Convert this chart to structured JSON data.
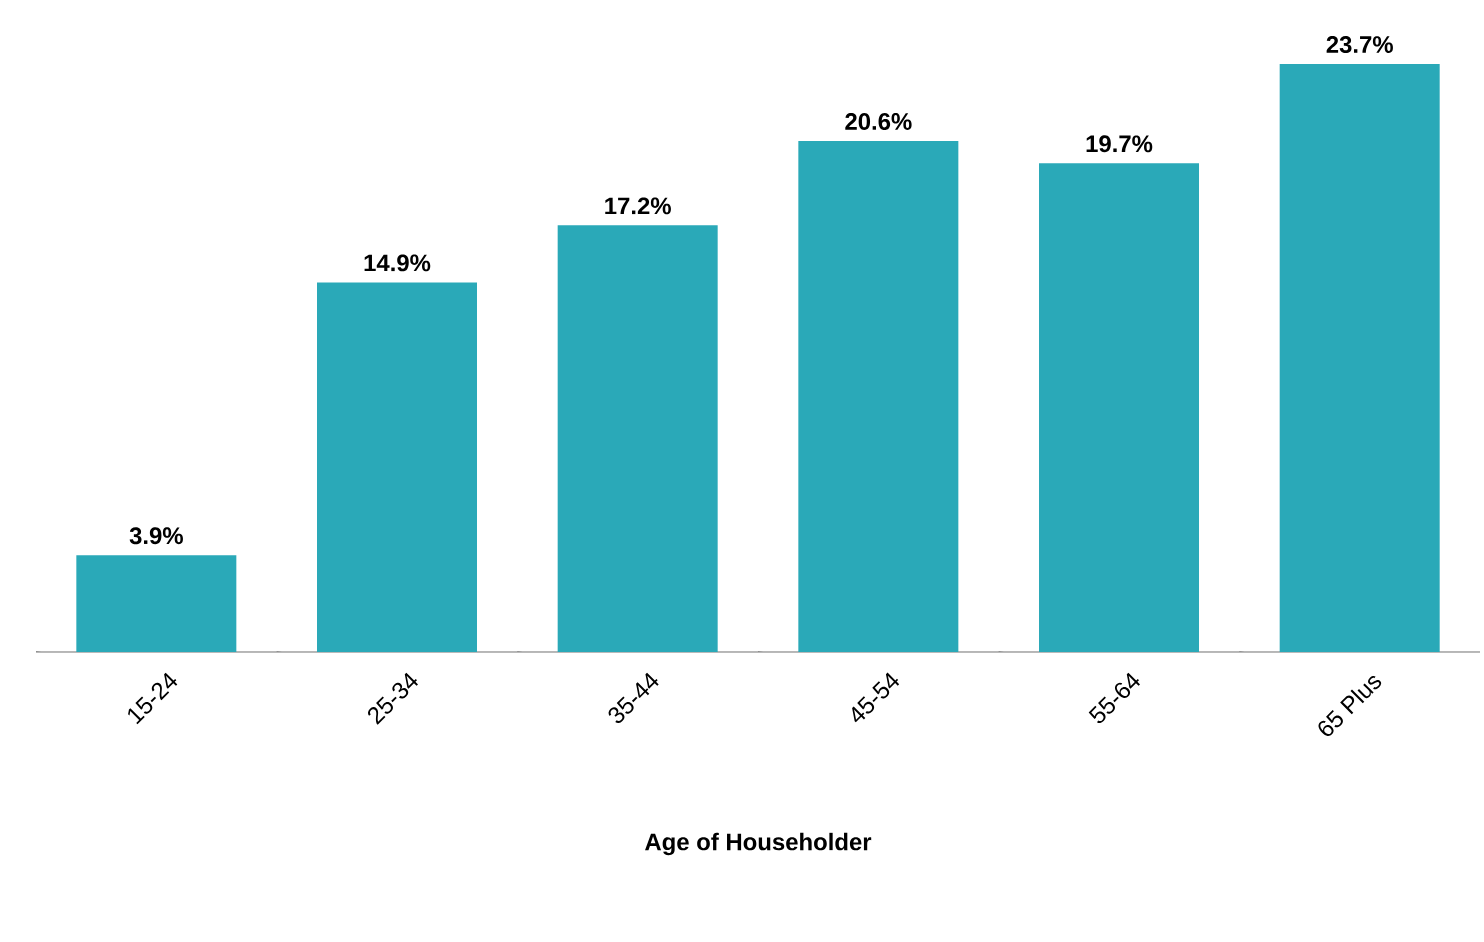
{
  "chart_data": {
    "type": "bar",
    "xlabel": "Age of Householder",
    "categories": [
      "15-24",
      "25-34",
      "35-44",
      "45-54",
      "55-64",
      "65 Plus"
    ],
    "values": [
      3.9,
      14.9,
      17.2,
      20.6,
      19.7,
      23.7
    ],
    "value_labels": [
      "3.9%",
      "14.9%",
      "17.2%",
      "20.6%",
      "19.7%",
      "23.7%"
    ],
    "color": "#2aa9b8"
  }
}
